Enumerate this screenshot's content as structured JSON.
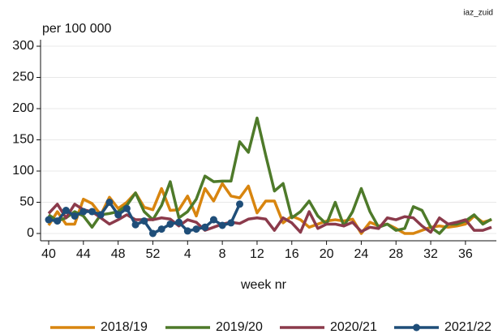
{
  "chart_data": {
    "type": "line",
    "note": "iaz_zuid",
    "y_label": "per 100 000",
    "x_label": "week nr",
    "categories": [
      "40",
      null,
      null,
      null,
      "44",
      null,
      null,
      null,
      "48",
      null,
      null,
      null,
      "52",
      null,
      null,
      null,
      "4",
      null,
      null,
      null,
      "8",
      null,
      null,
      null,
      "12",
      null,
      null,
      null,
      "16",
      null,
      null,
      null,
      "20",
      null,
      null,
      null,
      "24",
      null,
      null,
      null,
      "28",
      null,
      null,
      null,
      "32",
      null,
      null,
      null,
      "36",
      null,
      null,
      null
    ],
    "ylim": [
      0,
      300
    ],
    "yticks": [
      0,
      50,
      100,
      150,
      200,
      250,
      300
    ],
    "grid": true,
    "legend": "bottom",
    "series": [
      {
        "name": "2018/19",
        "color": "#d8850f",
        "values": [
          13,
          35,
          15,
          15,
          55,
          48,
          30,
          58,
          40,
          50,
          65,
          42,
          38,
          72,
          37,
          38,
          60,
          28,
          72,
          52,
          80,
          60,
          57,
          76,
          33,
          52,
          52,
          17,
          28,
          22,
          10,
          15,
          20,
          22,
          20,
          23,
          0,
          18,
          12,
          15,
          8,
          0,
          0,
          5,
          10,
          12,
          10,
          12,
          15,
          28,
          18,
          22
        ]
      },
      {
        "name": "2019/20",
        "color": "#4e7a2a",
        "values": [
          30,
          20,
          25,
          35,
          28,
          10,
          30,
          32,
          35,
          45,
          65,
          35,
          22,
          45,
          83,
          25,
          35,
          55,
          92,
          83,
          84,
          84,
          147,
          130,
          185,
          125,
          68,
          80,
          25,
          35,
          52,
          28,
          15,
          50,
          12,
          35,
          72,
          35,
          10,
          15,
          5,
          8,
          43,
          37,
          10,
          0,
          15,
          15,
          20,
          30,
          15,
          23
        ]
      },
      {
        "name": "2020/21",
        "color": "#8b3a4b",
        "values": [
          32,
          47,
          25,
          47,
          38,
          35,
          25,
          15,
          22,
          30,
          22,
          22,
          22,
          25,
          23,
          12,
          22,
          18,
          5,
          10,
          15,
          18,
          16,
          23,
          25,
          23,
          5,
          25,
          17,
          2,
          35,
          8,
          15,
          15,
          12,
          18,
          3,
          10,
          8,
          25,
          22,
          27,
          25,
          12,
          2,
          25,
          15,
          18,
          22,
          5,
          5,
          10
        ]
      },
      {
        "name": "2021/22",
        "color": "#1f4e79",
        "marker": "circle",
        "values": [
          22,
          20,
          37,
          28,
          35,
          35,
          30,
          50,
          30,
          40,
          14,
          20,
          0,
          7,
          15,
          18,
          4,
          7,
          10,
          22,
          13,
          17,
          47,
          null,
          null,
          null,
          null,
          null,
          null,
          null,
          null,
          null,
          null,
          null,
          null,
          null,
          null,
          null,
          null,
          null,
          null,
          null,
          null,
          null,
          null,
          null,
          null,
          null,
          null,
          null,
          null,
          null
        ]
      }
    ]
  }
}
